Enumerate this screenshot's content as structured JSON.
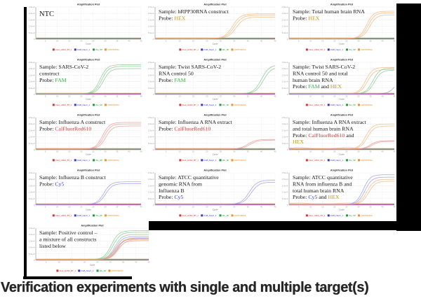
{
  "caption": {
    "text": "Verification experiments with single and multiple target(s)"
  },
  "axis": {
    "title": "Amplification Plot",
    "xlabel": "Cycle",
    "x_ticks": [
      5,
      10,
      15,
      20,
      25,
      30,
      35,
      40,
      45
    ],
    "x_range": [
      1,
      45
    ],
    "y_ticks": [
      "2.5e+4",
      "2.0e+4",
      "1.5e+4",
      "1.0e+4",
      "5.0e+3",
      "0"
    ],
    "grid": "on",
    "legend_position": "bottom"
  },
  "legend": [
    {
      "label": "FluA_H3N2_BT_1",
      "color": "#e03030"
    },
    {
      "label": "FluB_NayC_1",
      "color": "#3535d8"
    },
    {
      "label": "Wu_SP",
      "color": "#229a3a"
    },
    {
      "label": "hRPP30RNA",
      "color": "#f09028"
    }
  ],
  "probe_text_colors": {
    "HEX": "#c4940f",
    "FAM": "#3bb34c",
    "CalFluorRed610": "#e23333",
    "Cy5": "#2c3fd6"
  },
  "curve_colors": {
    "HEX": "#f2b176",
    "FAM": "#7ec487",
    "CalFluorRed610": "#ee9191",
    "Cy5": "#9195e8"
  },
  "baseline_colors": [
    "#d94f4f",
    "#4f4fd9",
    "#2f9e4f",
    "#f0a050",
    "#b05ab0"
  ],
  "chart_data": [
    {
      "type": "line",
      "grid": [
        0,
        0
      ],
      "annotation": [
        [
          {
            "t": "NTC"
          }
        ]
      ],
      "curves": []
    },
    {
      "type": "line",
      "grid": [
        0,
        1
      ],
      "annotation": [
        [
          {
            "t": "Sample: hRPP30RNA construct"
          }
        ],
        [
          {
            "t": "Probe: "
          },
          {
            "t": "HEX",
            "p": "HEX"
          }
        ]
      ],
      "curves": [
        {
          "probe": "HEX",
          "ct": 30,
          "plateau": 0.72,
          "reps": 3
        }
      ]
    },
    {
      "type": "line",
      "grid": [
        0,
        2
      ],
      "annotation": [
        [
          {
            "t": "Sample: Total human brain RNA"
          }
        ],
        [
          {
            "t": "Probe: "
          },
          {
            "t": "HEX",
            "p": "HEX"
          }
        ]
      ],
      "curves": [
        {
          "probe": "HEX",
          "ct": 34,
          "plateau": 0.8,
          "reps": 3
        }
      ]
    },
    {
      "type": "line",
      "grid": [
        1,
        0
      ],
      "annotation": [
        [
          {
            "t": "Sample: SARS-CoV-2"
          }
        ],
        [
          {
            "t": "construct"
          }
        ],
        [
          {
            "t": "Probe: "
          },
          {
            "t": "FAM",
            "p": "FAM"
          }
        ]
      ],
      "curves": [
        {
          "probe": "FAM",
          "ct": 28.5,
          "plateau": 0.85,
          "reps": 3
        }
      ]
    },
    {
      "type": "line",
      "grid": [
        1,
        1
      ],
      "annotation": [
        [
          {
            "t": "Sample: Twist SARS-CoV-2"
          }
        ],
        [
          {
            "t": "RNA control 50"
          }
        ],
        [
          {
            "t": "Probe: "
          },
          {
            "t": "FAM",
            "p": "FAM"
          }
        ]
      ],
      "curves": [
        {
          "probe": "FAM",
          "ct": 40,
          "plateau": 0.9,
          "reps": 2
        }
      ]
    },
    {
      "type": "line",
      "grid": [
        1,
        2
      ],
      "annotation": [
        [
          {
            "t": "Sample: Twist SARS-CoV-2"
          }
        ],
        [
          {
            "t": "RNA control 50 and total"
          }
        ],
        [
          {
            "t": "human brain RNA"
          }
        ],
        [
          {
            "t": "Probe: "
          },
          {
            "t": "FAM",
            "p": "FAM"
          },
          {
            "t": " and "
          },
          {
            "t": "HEX",
            "p": "HEX"
          }
        ]
      ],
      "curves": [
        {
          "probe": "HEX",
          "ct": 33,
          "plateau": 0.82,
          "reps": 2
        },
        {
          "probe": "FAM",
          "ct": 36,
          "plateau": 0.8,
          "reps": 2
        },
        {
          "probe": "Cy5",
          "ct": 45.5,
          "plateau": 0.5,
          "reps": 1
        }
      ]
    },
    {
      "type": "line",
      "grid": [
        2,
        0
      ],
      "annotation": [
        [
          {
            "t": "Sample: Influenza A construct"
          }
        ],
        [
          {
            "t": "Probe: "
          },
          {
            "t": "CalFluorRed610",
            "p": "CalFluorRed610"
          }
        ]
      ],
      "curves": [
        {
          "probe": "CalFluorRed610",
          "ct": 29.5,
          "plateau": 0.78,
          "reps": 3
        }
      ]
    },
    {
      "type": "line",
      "grid": [
        2,
        1
      ],
      "annotation": [
        [
          {
            "t": "Sample: Influenza A RNA extract"
          }
        ],
        [
          {
            "t": "Probe: "
          },
          {
            "t": "CalFluorRed610",
            "p": "CalFluorRed610"
          }
        ]
      ],
      "curves": [
        {
          "probe": "CalFluorRed610",
          "ct": 35,
          "plateau": 0.3,
          "reps": 2
        }
      ]
    },
    {
      "type": "line",
      "grid": [
        2,
        2
      ],
      "noise": "Cy5",
      "annotation": [
        [
          {
            "t": "Sample: Influenza A RNA extract"
          }
        ],
        [
          {
            "t": "and total human brain RNA"
          }
        ],
        [
          {
            "t": "Probe: "
          },
          {
            "t": "CalFluorRed610",
            "p": "CalFluorRed610"
          },
          {
            "t": " and"
          }
        ],
        [
          {
            "t": "HEX",
            "p": "HEX"
          }
        ]
      ],
      "curves": [
        {
          "probe": "HEX",
          "ct": 33,
          "plateau": 0.78,
          "reps": 2
        },
        {
          "probe": "CalFluorRed610",
          "ct": 35,
          "plateau": 0.26,
          "reps": 2
        }
      ]
    },
    {
      "type": "line",
      "grid": [
        3,
        0
      ],
      "annotation": [
        [
          {
            "t": "Sample: Influenza B construct"
          }
        ],
        [
          {
            "t": "Probe: "
          },
          {
            "t": "Cy5",
            "p": "Cy5"
          }
        ]
      ],
      "curves": [
        {
          "probe": "Cy5",
          "ct": 29.5,
          "plateau": 0.7,
          "reps": 2
        }
      ]
    },
    {
      "type": "line",
      "grid": [
        3,
        1
      ],
      "annotation": [
        [
          {
            "t": "Sample: ATCC quantitative"
          }
        ],
        [
          {
            "t": "genomic RNA from"
          }
        ],
        [
          {
            "t": "Influenza B"
          }
        ],
        [
          {
            "t": "Probe: "
          },
          {
            "t": "Cy5",
            "p": "Cy5"
          }
        ]
      ],
      "curves": [
        {
          "probe": "Cy5",
          "ct": 35.5,
          "plateau": 0.75,
          "reps": 2
        }
      ]
    },
    {
      "type": "line",
      "grid": [
        3,
        2
      ],
      "noise": "HEX",
      "annotation": [
        [
          {
            "t": "Sample: ATCC quantitative"
          }
        ],
        [
          {
            "t": "RNA from influenza B and"
          }
        ],
        [
          {
            "t": "total human brain RNA"
          }
        ],
        [
          {
            "t": "Probe: "
          },
          {
            "t": "Cy5",
            "p": "Cy5"
          },
          {
            "t": " and "
          },
          {
            "t": "HEX",
            "p": "HEX"
          }
        ]
      ],
      "curves": [
        {
          "probe": "Cy5",
          "ct": 32,
          "plateau": 0.92,
          "reps": 2
        },
        {
          "probe": "HEX",
          "ct": 33.5,
          "plateau": 0.78,
          "reps": 2
        }
      ]
    },
    {
      "type": "line",
      "grid": [
        4,
        0
      ],
      "annotation": [
        [
          {
            "t": "Sample: Positive control –"
          }
        ],
        [
          {
            "t": "a mixture of all constructs"
          }
        ],
        [
          {
            "t": "listed below"
          }
        ]
      ],
      "curves": [
        {
          "probe": "FAM",
          "ct": 31,
          "plateau": 0.85,
          "reps": 3
        },
        {
          "probe": "Cy5",
          "ct": 32,
          "plateau": 0.72,
          "reps": 2
        },
        {
          "probe": "CalFluorRed610",
          "ct": 32,
          "plateau": 0.64,
          "reps": 2
        },
        {
          "probe": "HEX",
          "ct": 32.5,
          "plateau": 0.68,
          "reps": 2
        }
      ]
    }
  ]
}
